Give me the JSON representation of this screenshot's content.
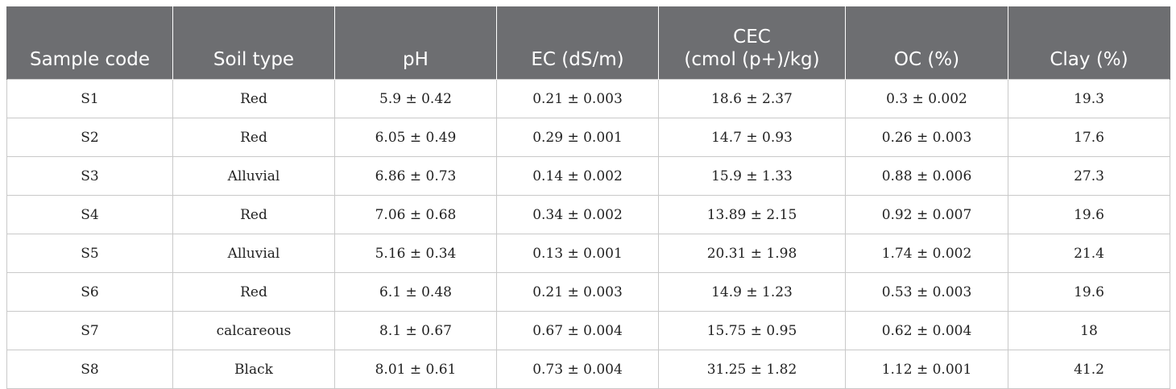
{
  "table": {
    "headers": [
      {
        "line1": "",
        "line2": "Sample code"
      },
      {
        "line1": "",
        "line2": "Soil type"
      },
      {
        "line1": "",
        "line2": "pH"
      },
      {
        "line1": "",
        "line2": "EC (dS/m)"
      },
      {
        "line1": "CEC",
        "line2": "(cmol (p+)/kg)"
      },
      {
        "line1": "",
        "line2": "OC (%)"
      },
      {
        "line1": "",
        "line2": "Clay (%)"
      }
    ],
    "rows": [
      [
        "S1",
        "Red",
        "5.9 ± 0.42",
        "0.21 ± 0.003",
        "18.6 ± 2.37",
        "0.3 ± 0.002",
        "19.3"
      ],
      [
        "S2",
        "Red",
        "6.05 ± 0.49",
        "0.29 ± 0.001",
        "14.7 ± 0.93",
        "0.26 ± 0.003",
        "17.6"
      ],
      [
        "S3",
        "Alluvial",
        "6.86 ± 0.73",
        "0.14 ± 0.002",
        "15.9 ± 1.33",
        "0.88 ± 0.006",
        "27.3"
      ],
      [
        "S4",
        "Red",
        "7.06 ± 0.68",
        "0.34 ± 0.002",
        "13.89 ± 2.15",
        "0.92 ± 0.007",
        "19.6"
      ],
      [
        "S5",
        "Alluvial",
        "5.16 ± 0.34",
        "0.13 ± 0.001",
        "20.31 ± 1.98",
        "1.74 ± 0.002",
        "21.4"
      ],
      [
        "S6",
        "Red",
        "6.1 ± 0.48",
        "0.21 ± 0.003",
        "14.9 ± 1.23",
        "0.53 ± 0.003",
        "19.6"
      ],
      [
        "S7",
        "calcareous",
        "8.1 ± 0.67",
        "0.67 ± 0.004",
        "15.75 ± 0.95",
        "0.62 ± 0.004",
        "18"
      ],
      [
        "S8",
        "Black",
        "8.01 ± 0.61",
        "0.73 ± 0.004",
        "31.25 ± 1.82",
        "1.12 ± 0.001",
        "41.2"
      ]
    ]
  },
  "colors": {
    "header_bg": "#6d6e71",
    "header_text": "#ffffff",
    "grid": "#c9c9c9",
    "cell_text": "#222222"
  }
}
